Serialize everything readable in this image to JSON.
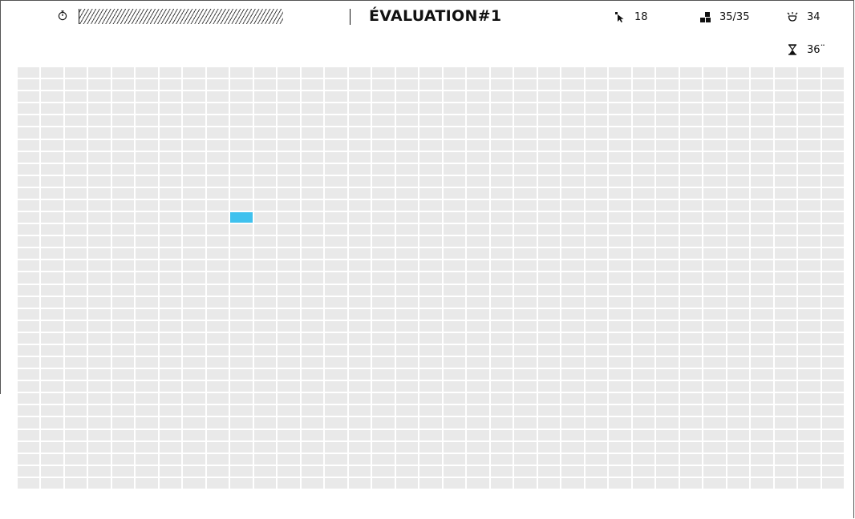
{
  "header": {
    "title": "ÉVALUATION#1",
    "timer_icon": "stopwatch-icon",
    "progress_fraction": 1.0
  },
  "stats": {
    "clicks": {
      "icon": "pointer-icon",
      "value": "18"
    },
    "tiles": {
      "icon": "tiles-icon",
      "value": "35/35"
    },
    "lives": {
      "icon": "lives-icon",
      "value": "34"
    },
    "time": {
      "icon": "hourglass-icon",
      "value": "36¨"
    }
  },
  "board": {
    "columns": 35,
    "rows": 35,
    "cell_color": "#e9e9e9",
    "active_color": "#3fc1ee",
    "active_cells": [
      {
        "row": 12,
        "col": 9
      }
    ]
  }
}
